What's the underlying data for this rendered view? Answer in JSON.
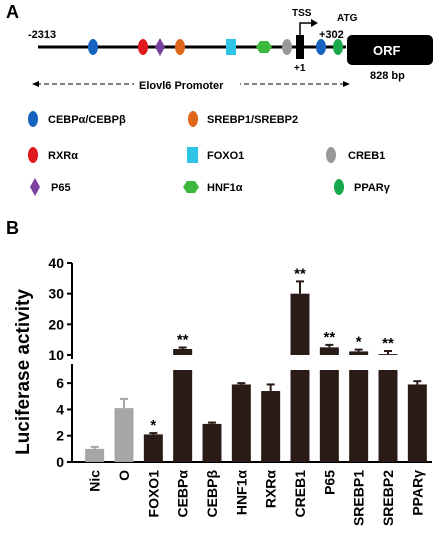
{
  "panel_a": {
    "label": "A",
    "start_pos": "-2313",
    "tss_label": "TSS",
    "plus_one": "+1",
    "plus_302": "+302",
    "atg_label": "ATG",
    "orf_label": "ORF",
    "orf_size": "828 bp",
    "promoter_label": "Elovl6 Promoter",
    "sites": [
      {
        "name": "CEBPα/CEBPβ",
        "shape": "ellipse",
        "color": "#1565c0"
      },
      {
        "name": "RXRα",
        "shape": "ellipse",
        "color": "#e0191e"
      },
      {
        "name": "P65",
        "shape": "diamond",
        "color": "#7b3fa0"
      },
      {
        "name": "SREBP1/SREBP2",
        "shape": "ellipse",
        "color": "#e0661a"
      },
      {
        "name": "FOXO1",
        "shape": "square",
        "color": "#2ec4e6"
      },
      {
        "name": "HNF1α",
        "shape": "hexagon",
        "color": "#3cb83c"
      },
      {
        "name": "CREB1",
        "shape": "ellipse",
        "color": "#999999"
      },
      {
        "name": "PPARγ",
        "shape": "ellipse",
        "color": "#19a84a"
      }
    ]
  },
  "panel_b": {
    "label": "B"
  },
  "chart_data": {
    "type": "bar",
    "ylabel": "Luciferase activity",
    "axis_break": {
      "lower": [
        0,
        7
      ],
      "upper": [
        10,
        40
      ]
    },
    "lower_ticks": [
      "0",
      "2",
      "4",
      "6"
    ],
    "upper_ticks": [
      "10",
      "20",
      "30",
      "40"
    ],
    "categories": [
      "Nic",
      "O",
      "FOXO1",
      "CEBPα",
      "CEBPβ",
      "HNF1α",
      "RXRα",
      "CREB1",
      "P65",
      "SREBP1",
      "SREBP2",
      "PPARγ"
    ],
    "values": [
      1.0,
      4.1,
      2.1,
      9.0,
      2.9,
      5.9,
      5.4,
      30.0,
      12.5,
      8.2,
      10.3,
      5.9
    ],
    "errors": [
      0.15,
      0.7,
      0.1,
      0.5,
      0.1,
      0.1,
      0.5,
      4.0,
      0.8,
      0.6,
      1.0,
      0.25
    ],
    "significance": [
      "",
      "",
      "*",
      "**",
      "",
      "",
      "",
      "**",
      "**",
      "*",
      "**",
      ""
    ],
    "colors": {
      "control": "#a6a6a6",
      "treatment": "#2b1b17"
    },
    "control_categories": [
      "Nic",
      "O"
    ]
  }
}
